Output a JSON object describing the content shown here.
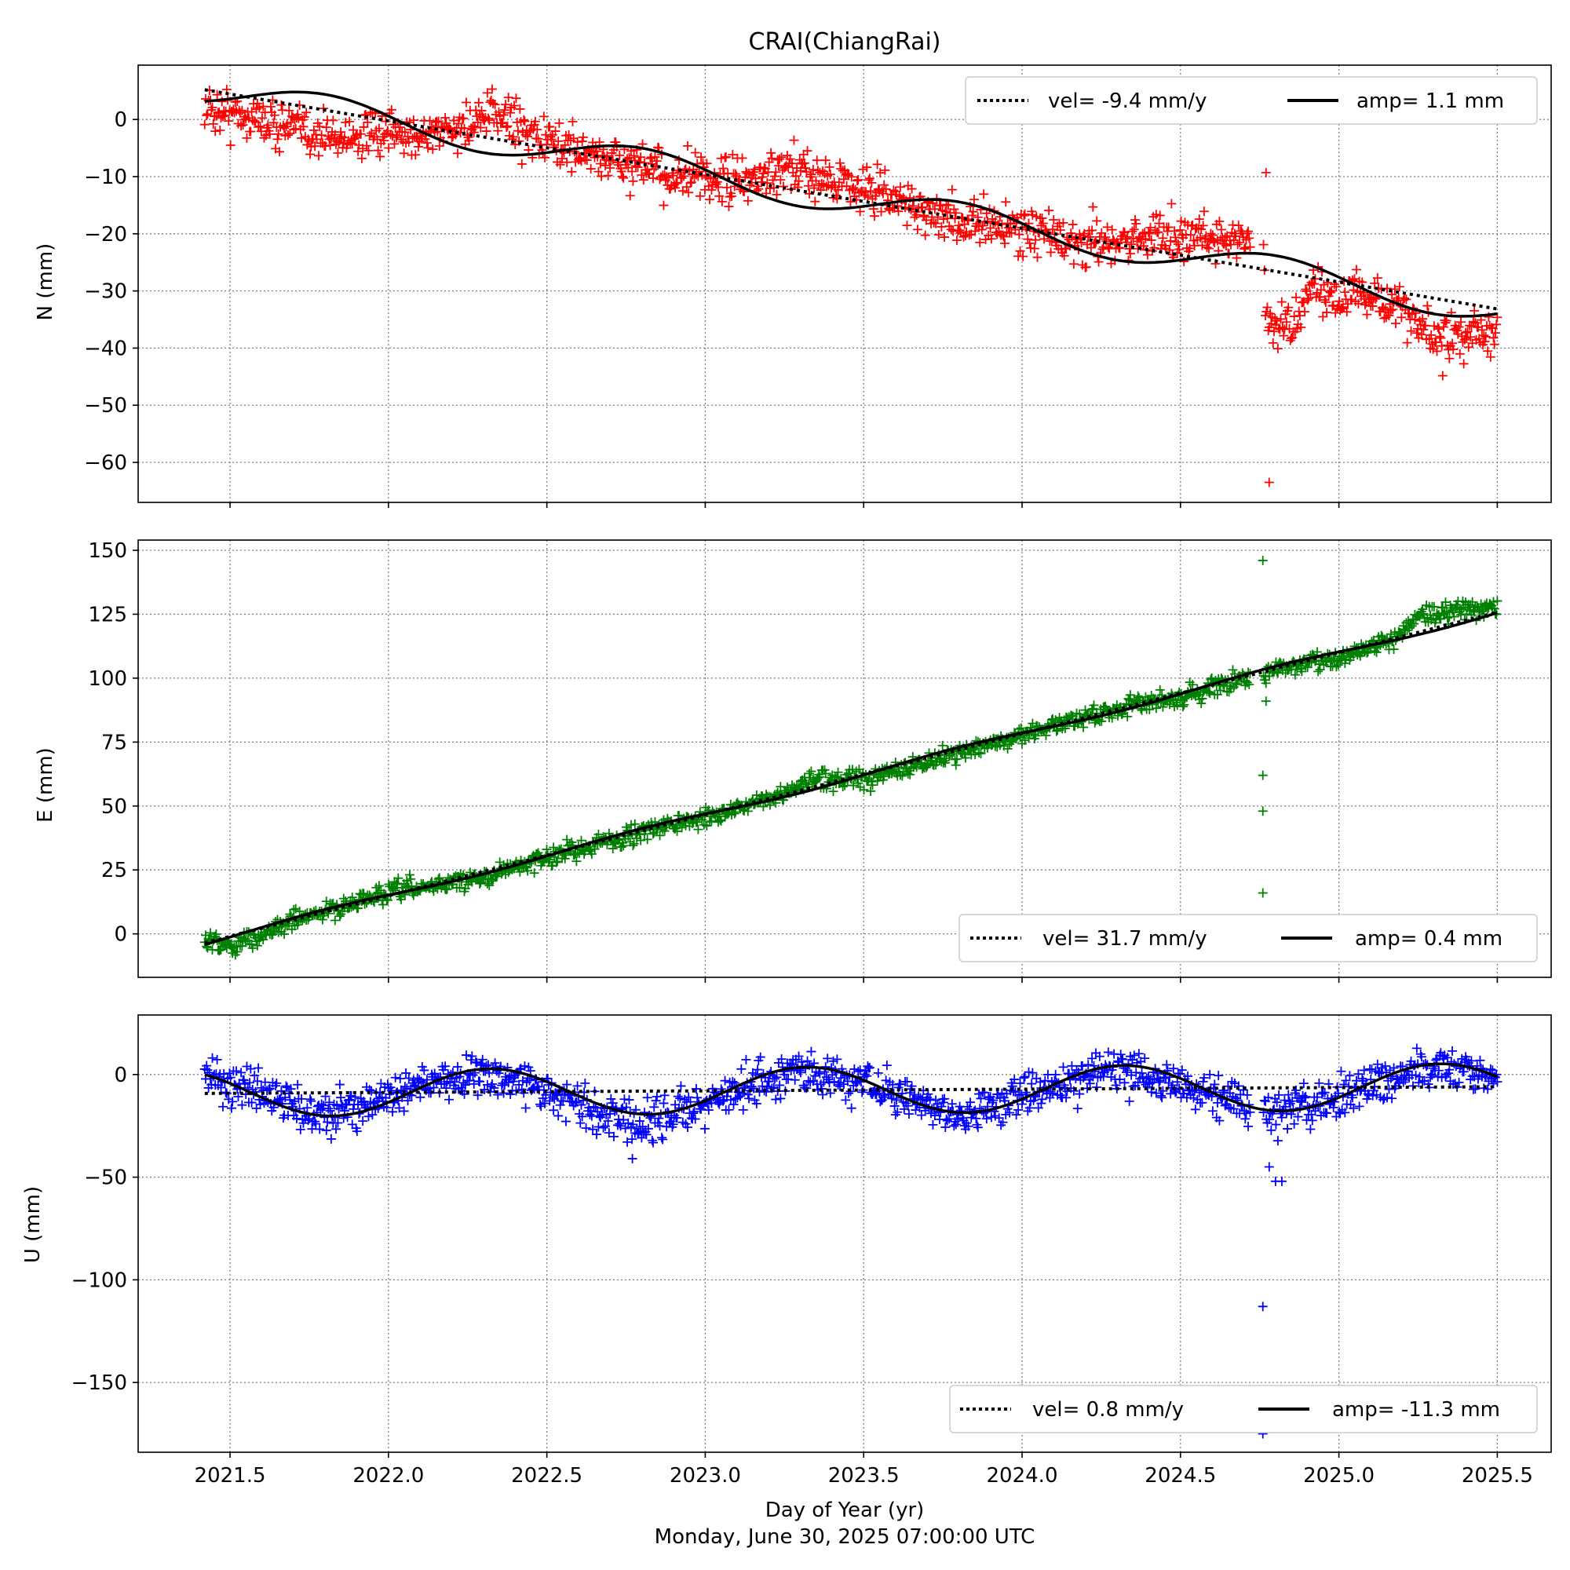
{
  "title": "CRAI(ChiangRai)",
  "xlabel": "Day of Year (yr)",
  "timestamp": "Monday, June 30, 2025 07:00:00 UTC",
  "x_ticks": [
    2021.5,
    2022.0,
    2022.5,
    2023.0,
    2023.5,
    2024.0,
    2024.5,
    2025.0,
    2025.5
  ],
  "x_tick_labels": [
    "2021.5",
    "2022.0",
    "2022.5",
    "2023.0",
    "2023.5",
    "2024.0",
    "2024.5",
    "2025.0",
    "2025.5"
  ],
  "xlim": [
    2021.21,
    2025.67
  ],
  "colors": {
    "N": "#ff0000",
    "E": "#008000",
    "U": "#0000ff",
    "fit": "#000000",
    "grid": "#808080"
  },
  "chart_data": [
    {
      "type": "scatter",
      "component": "N",
      "ylabel": "N (mm)",
      "ylim": [
        -67,
        9.5
      ],
      "y_ticks": [
        0,
        -10,
        -20,
        -30,
        -40,
        -50,
        -60
      ],
      "y_tick_labels": [
        "0",
        "−10",
        "−20",
        "−30",
        "−40",
        "−50",
        "−60"
      ],
      "grid": true,
      "legend_placement": "top-right",
      "legend": {
        "vel": "vel= -9.4 mm/y",
        "amp": "amp= 1.1 mm"
      },
      "trend": {
        "x0": 2021.42,
        "y0": 5.2,
        "velocity": -9.4
      },
      "seasonal": {
        "amplitude": 1.1,
        "phase_year": 2021.55
      },
      "series_shape": {
        "x": [
          2021.42,
          2021.6,
          2021.8,
          2022.0,
          2022.2,
          2022.35,
          2022.5,
          2022.7,
          2022.9,
          2023.1,
          2023.3,
          2023.45,
          2023.6,
          2023.8,
          2024.0,
          2024.2,
          2024.45,
          2024.7,
          2024.76,
          2024.77,
          2024.85,
          2024.9,
          2025.1,
          2025.2,
          2025.3,
          2025.5
        ],
        "y": [
          2,
          0,
          -3,
          -3,
          -2,
          1,
          -4,
          -7,
          -10,
          -11,
          -9,
          -11,
          -14,
          -18,
          -19,
          -22,
          -20,
          -21,
          -22,
          -35,
          -37,
          -30,
          -31,
          -33,
          -39,
          -37
        ]
      },
      "noise": 2.0,
      "outliers": [
        [
          2024.77,
          -9.3
        ],
        [
          2024.78,
          -63.5
        ]
      ]
    },
    {
      "type": "scatter",
      "component": "E",
      "ylabel": "E (mm)",
      "ylim": [
        -17,
        154
      ],
      "y_ticks": [
        150,
        125,
        100,
        75,
        50,
        25,
        0
      ],
      "y_tick_labels": [
        "150",
        "125",
        "100",
        "75",
        "50",
        "25",
        "0"
      ],
      "grid": true,
      "legend_placement": "bottom-right",
      "legend": {
        "vel": "vel= 31.7 mm/y",
        "amp": "amp= 0.4 mm"
      },
      "trend": {
        "x0": 2021.42,
        "y0": -3.5,
        "velocity": 31.7
      },
      "seasonal": {
        "amplitude": 0.4,
        "phase_year": 2021.55
      },
      "series_shape": {
        "x": [
          2021.42,
          2021.5,
          2021.7,
          2022.0,
          2022.3,
          2022.5,
          2022.8,
          2023.0,
          2023.2,
          2023.35,
          2023.5,
          2023.8,
          2024.0,
          2024.3,
          2024.5,
          2024.7,
          2024.76,
          2024.8,
          2025.0,
          2025.2,
          2025.25,
          2025.5
        ],
        "y": [
          -2,
          -5,
          5,
          16,
          22,
          30,
          40,
          46,
          52,
          61,
          60,
          71,
          78,
          88,
          92,
          100,
          101,
          104,
          108,
          117,
          124,
          129
        ]
      },
      "noise": 1.8,
      "outliers": [
        [
          2024.76,
          146
        ],
        [
          2024.76,
          62
        ],
        [
          2024.76,
          48
        ],
        [
          2024.76,
          16
        ],
        [
          2024.77,
          91
        ],
        [
          2024.77,
          98
        ]
      ]
    },
    {
      "type": "scatter",
      "component": "U",
      "ylabel": "U (mm)",
      "ylim": [
        -184,
        29
      ],
      "y_ticks": [
        0,
        -50,
        -100,
        -150
      ],
      "y_tick_labels": [
        "0",
        "−50",
        "−100",
        "−150"
      ],
      "grid": true,
      "legend_placement": "bottom-right",
      "legend": {
        "vel": "vel= 0.8 mm/y",
        "amp": "amp= -11.3 mm"
      },
      "trend": {
        "x0": 2021.42,
        "y0": -9.2,
        "velocity": 0.8
      },
      "seasonal": {
        "amplitude": -11.3,
        "phase_year": 2021.57
      },
      "series_shape": {
        "x": [
          2021.42,
          2021.8,
          2022.3,
          2022.8,
          2023.3,
          2023.8,
          2024.3,
          2024.8,
          2025.3,
          2025.5
        ],
        "y": [
          0,
          -20,
          2,
          -25,
          3,
          -19,
          4,
          -20,
          5,
          0
        ]
      },
      "noise": 5.0,
      "outliers": [
        [
          2024.76,
          -113
        ],
        [
          2024.78,
          -45
        ],
        [
          2024.8,
          -52
        ],
        [
          2024.82,
          -52
        ],
        [
          2024.76,
          -175
        ],
        [
          2022.77,
          -41
        ]
      ]
    }
  ]
}
